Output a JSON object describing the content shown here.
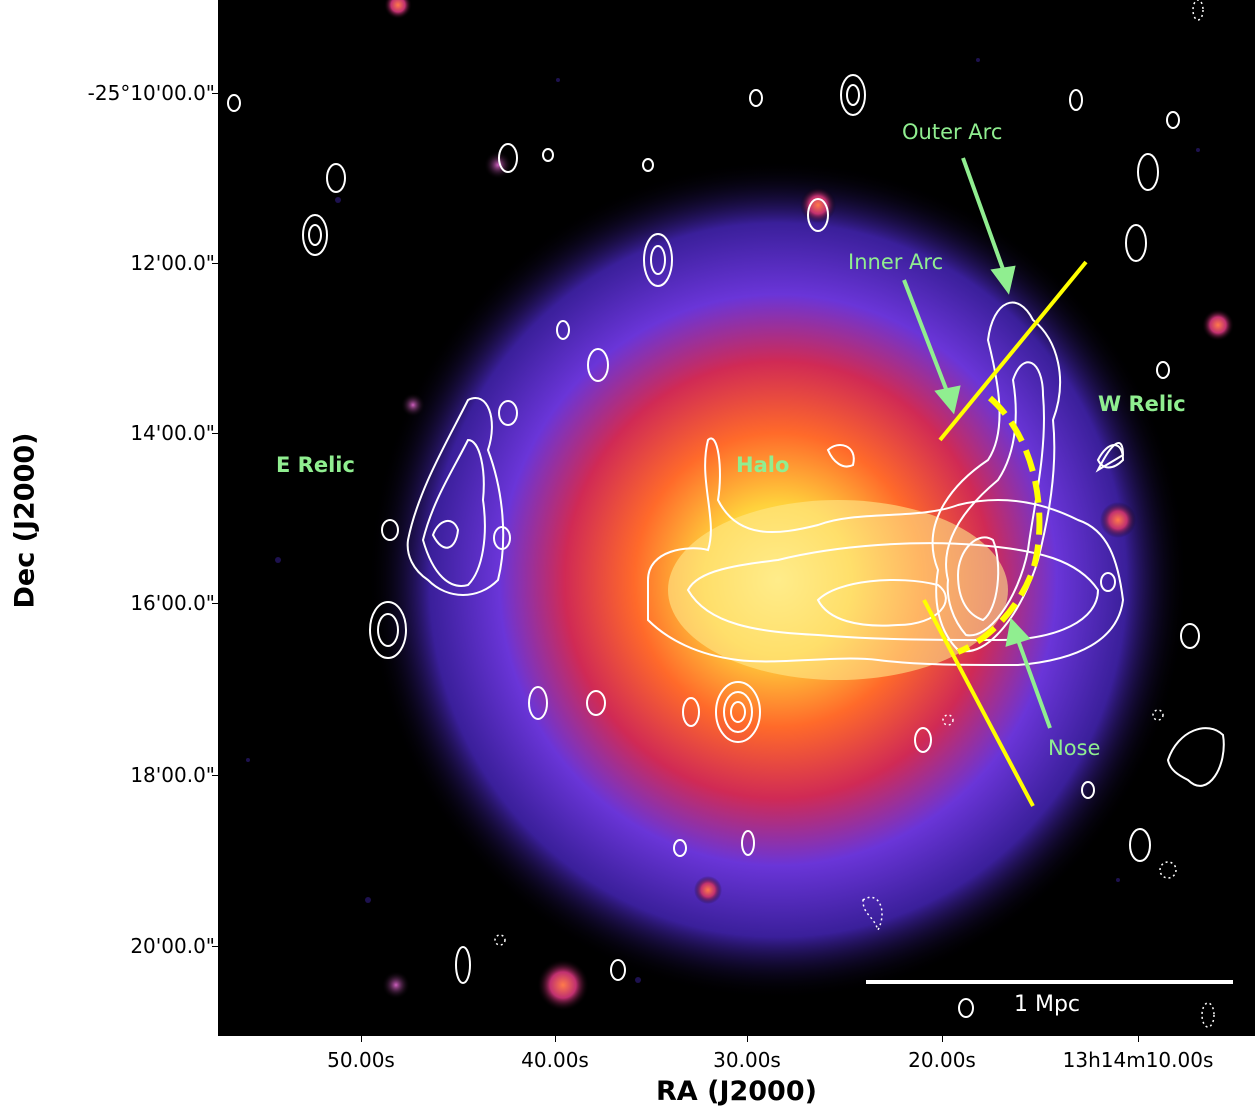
{
  "axes": {
    "xlabel": "RA (J2000)",
    "ylabel": "Dec (J2000)",
    "x_ticks": [
      "50.00s",
      "40.00s",
      "30.00s",
      "20.00s",
      "13h14m10.00s"
    ],
    "y_ticks": [
      "-25°10'00.0\"",
      "12'00.0\"",
      "14'00.0\"",
      "16'00.0\"",
      "18'00.0\"",
      "20'00.0\""
    ]
  },
  "annotations": {
    "outer_arc": "Outer Arc",
    "inner_arc": "Inner Arc",
    "w_relic": "W Relic",
    "e_relic": "E Relic",
    "halo": "Halo",
    "nose": "Nose",
    "scale_bar": "1 Mpc"
  },
  "colors": {
    "background": "#000000",
    "annotation_green": "#90ee90",
    "shock_lines": "#ffff00",
    "contours": "#ffffff",
    "xray_core": "#ffe066",
    "xray_mid": "#ff4422",
    "xray_outer": "#5533cc"
  }
}
